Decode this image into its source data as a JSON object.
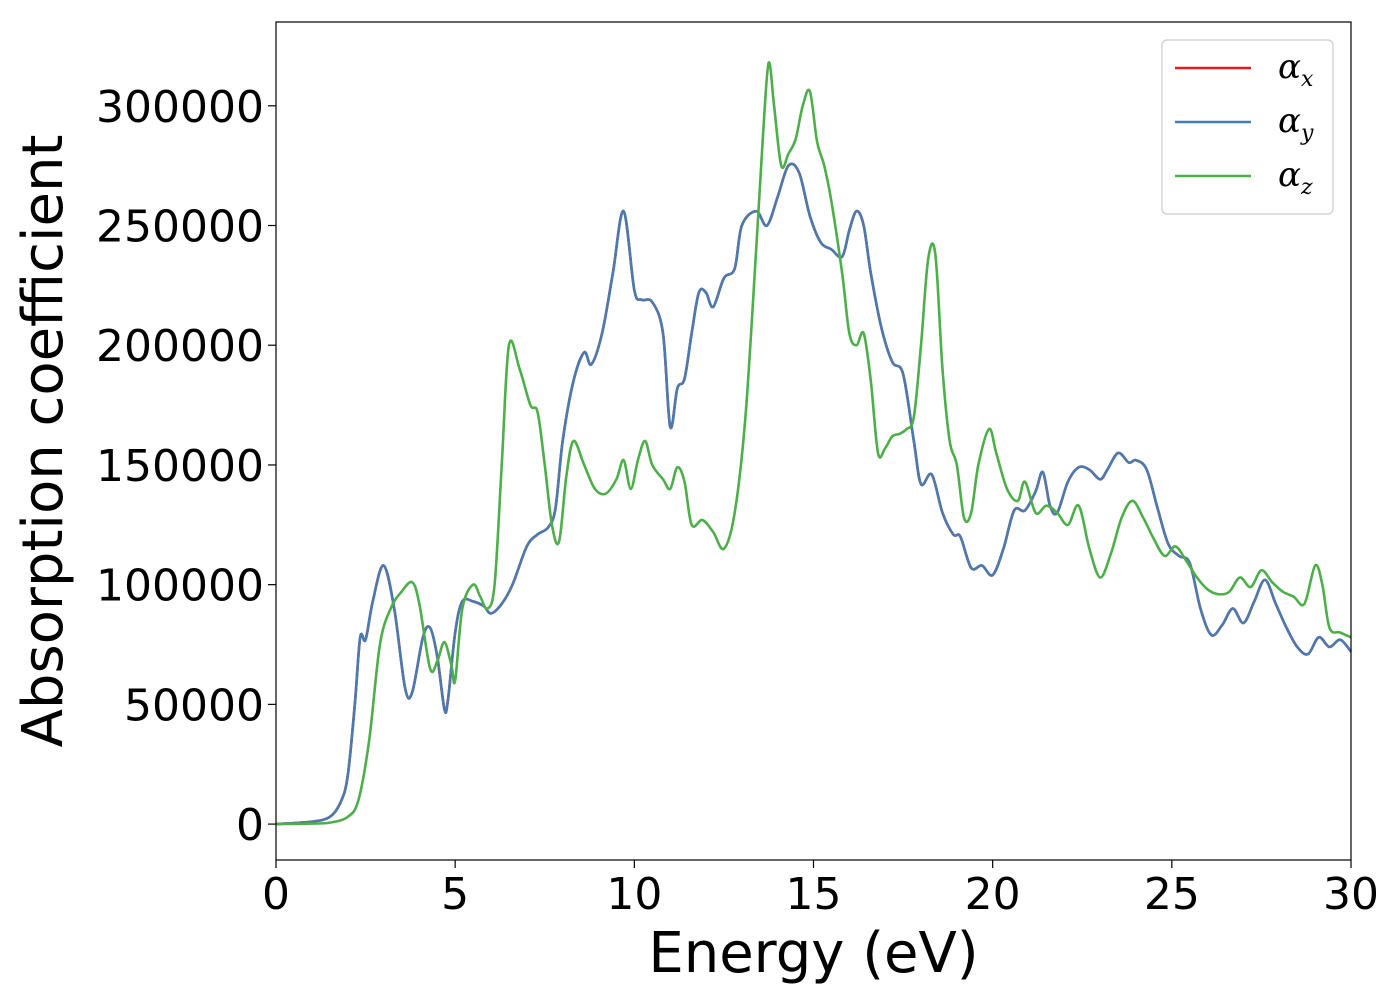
{
  "chart_data": {
    "type": "line",
    "xlabel": "Energy (eV)",
    "ylabel": "Absorption coefficient",
    "xlim": [
      0,
      30
    ],
    "ylim": [
      -15000,
      335000
    ],
    "xticks": [
      0,
      5,
      10,
      15,
      20,
      25,
      30
    ],
    "xtick_labels": [
      "0",
      "5",
      "10",
      "15",
      "20",
      "25",
      "30"
    ],
    "yticks": [
      0,
      50000,
      100000,
      150000,
      200000,
      250000,
      300000
    ],
    "ytick_labels": [
      "0",
      "50000",
      "100000",
      "150000",
      "200000",
      "250000",
      "300000"
    ],
    "grid": false,
    "legend_position": "top-right",
    "series": [
      {
        "name": "α",
        "subscript": "x",
        "color": "#e41a1c",
        "x": [
          0,
          1,
          1.5,
          1.8,
          2.0,
          2.2,
          2.35,
          2.5,
          2.7,
          3.0,
          3.3,
          3.6,
          3.8,
          4.1,
          4.3,
          4.5,
          4.7,
          4.8,
          5.0,
          5.2,
          5.5,
          5.8,
          6.0,
          6.3,
          6.6,
          7.0,
          7.3,
          7.6,
          7.8,
          8.0,
          8.3,
          8.6,
          8.8,
          9.1,
          9.4,
          9.7,
          10.0,
          10.2,
          10.5,
          10.8,
          11.0,
          11.2,
          11.4,
          11.6,
          11.8,
          12.0,
          12.2,
          12.5,
          12.8,
          13.0,
          13.4,
          13.7,
          14.0,
          14.3,
          14.6,
          14.9,
          15.2,
          15.5,
          15.8,
          16.0,
          16.2,
          16.4,
          16.6,
          16.9,
          17.2,
          17.5,
          17.8,
          18.0,
          18.3,
          18.6,
          18.9,
          19.1,
          19.4,
          19.7,
          20.0,
          20.3,
          20.6,
          20.9,
          21.2,
          21.4,
          21.6,
          21.8,
          22.1,
          22.4,
          22.7,
          23.0,
          23.2,
          23.5,
          23.8,
          24.0,
          24.3,
          24.6,
          24.9,
          25.2,
          25.5,
          25.8,
          26.1,
          26.4,
          26.7,
          27.0,
          27.3,
          27.6,
          27.9,
          28.2,
          28.5,
          28.8,
          29.1,
          29.4,
          29.7,
          30.0
        ],
        "y": [
          0,
          1000,
          3000,
          9000,
          20000,
          50000,
          78000,
          77000,
          93000,
          108000,
          90000,
          57000,
          55000,
          78000,
          82000,
          70000,
          48000,
          52000,
          80000,
          93000,
          93000,
          91000,
          88000,
          92000,
          100000,
          116000,
          121000,
          124000,
          132000,
          160000,
          185000,
          197000,
          192000,
          205000,
          230000,
          256000,
          223000,
          219000,
          218000,
          205000,
          166000,
          182000,
          186000,
          205000,
          222000,
          222000,
          216000,
          228000,
          232000,
          250000,
          256000,
          250000,
          262000,
          275000,
          272000,
          254000,
          243000,
          240000,
          237000,
          248000,
          256000,
          250000,
          230000,
          207000,
          193000,
          188000,
          160000,
          142000,
          146000,
          130000,
          121000,
          120000,
          107000,
          108000,
          104000,
          115000,
          131000,
          131000,
          139000,
          147000,
          133000,
          130000,
          143000,
          149000,
          148000,
          144000,
          148000,
          155000,
          151000,
          152000,
          148000,
          132000,
          117000,
          112000,
          109000,
          90000,
          79000,
          83000,
          90000,
          84000,
          93000,
          102000,
          92000,
          82000,
          74000,
          71000,
          78000,
          74000,
          77000,
          72000
        ]
      },
      {
        "name": "α",
        "subscript": "y",
        "color": "#4a7bb0",
        "x": [
          0,
          1,
          1.5,
          1.8,
          2.0,
          2.2,
          2.35,
          2.5,
          2.7,
          3.0,
          3.3,
          3.6,
          3.8,
          4.1,
          4.3,
          4.5,
          4.7,
          4.8,
          5.0,
          5.2,
          5.5,
          5.8,
          6.0,
          6.3,
          6.6,
          7.0,
          7.3,
          7.6,
          7.8,
          8.0,
          8.3,
          8.6,
          8.8,
          9.1,
          9.4,
          9.7,
          10.0,
          10.2,
          10.5,
          10.8,
          11.0,
          11.2,
          11.4,
          11.6,
          11.8,
          12.0,
          12.2,
          12.5,
          12.8,
          13.0,
          13.4,
          13.7,
          14.0,
          14.3,
          14.6,
          14.9,
          15.2,
          15.5,
          15.8,
          16.0,
          16.2,
          16.4,
          16.6,
          16.9,
          17.2,
          17.5,
          17.8,
          18.0,
          18.3,
          18.6,
          18.9,
          19.1,
          19.4,
          19.7,
          20.0,
          20.3,
          20.6,
          20.9,
          21.2,
          21.4,
          21.6,
          21.8,
          22.1,
          22.4,
          22.7,
          23.0,
          23.2,
          23.5,
          23.8,
          24.0,
          24.3,
          24.6,
          24.9,
          25.2,
          25.5,
          25.8,
          26.1,
          26.4,
          26.7,
          27.0,
          27.3,
          27.6,
          27.9,
          28.2,
          28.5,
          28.8,
          29.1,
          29.4,
          29.7,
          30.0
        ],
        "y": [
          0,
          1000,
          3000,
          9000,
          20000,
          50000,
          78000,
          77000,
          93000,
          108000,
          90000,
          57000,
          55000,
          78000,
          82000,
          70000,
          48000,
          52000,
          80000,
          93000,
          93000,
          91000,
          88000,
          92000,
          100000,
          116000,
          121000,
          124000,
          132000,
          160000,
          185000,
          197000,
          192000,
          205000,
          230000,
          256000,
          223000,
          219000,
          218000,
          205000,
          166000,
          182000,
          186000,
          205000,
          222000,
          222000,
          216000,
          228000,
          232000,
          250000,
          256000,
          250000,
          262000,
          275000,
          272000,
          254000,
          243000,
          240000,
          237000,
          248000,
          256000,
          250000,
          230000,
          207000,
          193000,
          188000,
          160000,
          142000,
          146000,
          130000,
          121000,
          120000,
          107000,
          108000,
          104000,
          115000,
          131000,
          131000,
          139000,
          147000,
          133000,
          130000,
          143000,
          149000,
          148000,
          144000,
          148000,
          155000,
          151000,
          152000,
          148000,
          132000,
          117000,
          112000,
          109000,
          90000,
          79000,
          83000,
          90000,
          84000,
          93000,
          102000,
          92000,
          82000,
          74000,
          71000,
          78000,
          74000,
          77000,
          72000
        ]
      },
      {
        "name": "α",
        "subscript": "z",
        "color": "#4daf4a",
        "x": [
          0,
          1,
          1.5,
          2.0,
          2.3,
          2.6,
          2.9,
          3.2,
          3.5,
          3.8,
          4.0,
          4.3,
          4.5,
          4.7,
          4.9,
          5.0,
          5.2,
          5.5,
          5.7,
          5.9,
          6.1,
          6.3,
          6.5,
          6.8,
          7.1,
          7.3,
          7.5,
          7.7,
          7.9,
          8.1,
          8.3,
          8.6,
          8.9,
          9.2,
          9.5,
          9.7,
          9.9,
          10.1,
          10.3,
          10.5,
          10.8,
          11.0,
          11.2,
          11.4,
          11.6,
          11.9,
          12.2,
          12.5,
          12.8,
          13.1,
          13.4,
          13.6,
          13.75,
          13.9,
          14.1,
          14.3,
          14.5,
          14.7,
          14.9,
          15.1,
          15.3,
          15.5,
          15.8,
          16.0,
          16.2,
          16.4,
          16.6,
          16.8,
          17.0,
          17.2,
          17.4,
          17.6,
          17.8,
          18.0,
          18.2,
          18.4,
          18.6,
          18.8,
          19.0,
          19.2,
          19.4,
          19.6,
          19.9,
          20.1,
          20.4,
          20.7,
          20.9,
          21.2,
          21.5,
          21.8,
          22.1,
          22.4,
          22.7,
          23.0,
          23.3,
          23.6,
          23.9,
          24.2,
          24.5,
          24.8,
          25.1,
          25.4,
          25.7,
          26.0,
          26.3,
          26.6,
          26.9,
          27.2,
          27.5,
          27.8,
          28.1,
          28.4,
          28.7,
          29.0,
          29.2,
          29.4,
          29.7,
          30.0
        ],
        "y": [
          0,
          200,
          600,
          3000,
          10000,
          35000,
          75000,
          90000,
          97000,
          101000,
          92000,
          65000,
          68000,
          76000,
          66000,
          60000,
          90000,
          100000,
          95000,
          90000,
          100000,
          150000,
          200000,
          190000,
          175000,
          172000,
          150000,
          125000,
          118000,
          145000,
          160000,
          150000,
          140000,
          138000,
          144000,
          152000,
          140000,
          152000,
          160000,
          150000,
          144000,
          140000,
          149000,
          143000,
          125000,
          127000,
          122000,
          115000,
          130000,
          170000,
          240000,
          290000,
          318000,
          300000,
          275000,
          280000,
          286000,
          300000,
          306000,
          285000,
          275000,
          260000,
          230000,
          205000,
          200000,
          205000,
          185000,
          155000,
          157000,
          162000,
          163000,
          165000,
          170000,
          200000,
          236000,
          238000,
          190000,
          160000,
          150000,
          128000,
          130000,
          150000,
          165000,
          155000,
          140000,
          135000,
          143000,
          130000,
          133000,
          130000,
          125000,
          133000,
          115000,
          103000,
          113000,
          128000,
          135000,
          128000,
          119000,
          112000,
          116000,
          110000,
          103000,
          98000,
          96000,
          97000,
          103000,
          99000,
          106000,
          101000,
          97000,
          95000,
          92000,
          108000,
          100000,
          82000,
          80000,
          78000
        ]
      }
    ]
  }
}
